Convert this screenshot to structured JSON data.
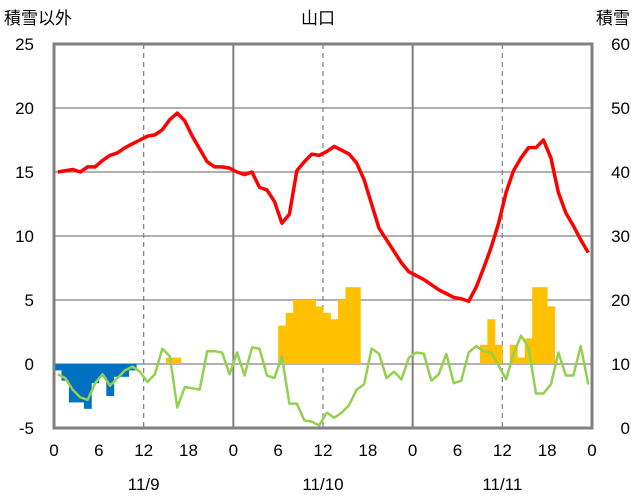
{
  "chart_data": {
    "type": "bar+line",
    "title": "山口",
    "left_axis_label": "積雪以外",
    "right_axis_label": "積雪",
    "left_ylim": [
      -5,
      25
    ],
    "left_ticks": [
      -5,
      0,
      5,
      10,
      15,
      20,
      25
    ],
    "right_ylim": [
      0,
      60
    ],
    "right_ticks": [
      0,
      10,
      20,
      30,
      40,
      50,
      60
    ],
    "x_range_hours": [
      0,
      72
    ],
    "x_tick_labels": [
      "0",
      "6",
      "12",
      "18",
      "0",
      "6",
      "12",
      "18",
      "0",
      "6",
      "12",
      "18",
      "0"
    ],
    "date_labels": [
      "11/9",
      "11/10",
      "11/11"
    ],
    "colors": {
      "temperature": "#ff0000",
      "green_line": "#92d050",
      "positive_bars": "#ffc000",
      "negative_bars": "#0070c0"
    },
    "series": [
      {
        "key": "temperature",
        "x": [
          0,
          1,
          2,
          3,
          4,
          5,
          6,
          7,
          8,
          9,
          10,
          11,
          12,
          13,
          14,
          15,
          16,
          17,
          18,
          19,
          20,
          21,
          22,
          23,
          24,
          25,
          26,
          27,
          28,
          29,
          30,
          31,
          32,
          33,
          34,
          35,
          36,
          37,
          38,
          39,
          40,
          41,
          42,
          43,
          44,
          45,
          46,
          47,
          48,
          49,
          50,
          51,
          52,
          53,
          54,
          55,
          56,
          57,
          58,
          59,
          60,
          61,
          62,
          63,
          64,
          65,
          66,
          67,
          68,
          69,
          70,
          71
        ],
        "values": [
          15.0,
          15.1,
          15.2,
          15.0,
          15.4,
          15.4,
          15.9,
          16.3,
          16.5,
          16.9,
          17.2,
          17.5,
          17.8,
          17.9,
          18.3,
          19.1,
          19.6,
          19.0,
          17.8,
          16.8,
          15.8,
          15.4,
          15.4,
          15.3,
          15.0,
          14.8,
          15.0,
          13.8,
          13.6,
          12.7,
          11.0,
          11.7,
          15.1,
          15.8,
          16.4,
          16.3,
          16.6,
          17.0,
          16.7,
          16.4,
          15.7,
          14.4,
          12.5,
          10.6,
          9.7,
          8.8,
          7.9,
          7.2,
          6.9,
          6.6,
          6.2,
          5.8,
          5.5,
          5.2,
          5.1,
          4.9,
          6.0,
          7.5,
          9.1,
          11.0,
          13.4,
          15.1,
          16.1,
          16.9,
          16.9,
          17.5,
          16.1,
          13.4,
          11.8,
          10.8,
          9.7,
          8.7
        ]
      },
      {
        "key": "green_line",
        "x": [
          0,
          1,
          2,
          3,
          4,
          5,
          6,
          7,
          8,
          9,
          10,
          11,
          12,
          13,
          14,
          15,
          16,
          17,
          18,
          19,
          20,
          21,
          22,
          23,
          24,
          25,
          26,
          27,
          28,
          29,
          30,
          31,
          32,
          33,
          34,
          35,
          36,
          37,
          38,
          39,
          40,
          41,
          42,
          43,
          44,
          45,
          46,
          47,
          48,
          49,
          50,
          51,
          52,
          53,
          54,
          55,
          56,
          57,
          58,
          59,
          60,
          61,
          62,
          63,
          64,
          65,
          66,
          67,
          68,
          69,
          70,
          71
        ],
        "values": [
          -0.8,
          -1.1,
          -2.0,
          -2.6,
          -2.8,
          -1.5,
          -0.8,
          -1.7,
          -1.1,
          -0.5,
          -0.2,
          -0.6,
          -1.4,
          -0.8,
          1.2,
          0.6,
          -3.4,
          -1.8,
          -1.9,
          -2.0,
          1.0,
          1.0,
          0.9,
          -0.8,
          0.9,
          -0.9,
          1.3,
          1.2,
          -0.9,
          -1.1,
          0.6,
          -3.1,
          -3.1,
          -4.4,
          -4.5,
          -4.8,
          -3.8,
          -4.2,
          -3.8,
          -3.2,
          -2.0,
          -1.6,
          1.2,
          0.8,
          -1.1,
          -0.6,
          -1.2,
          0.5,
          0.9,
          0.8,
          -1.3,
          -0.8,
          0.8,
          -1.5,
          -1.3,
          0.9,
          1.4,
          1.0,
          0.9,
          -0.1,
          -1.2,
          0.8,
          2.2,
          1.3,
          -2.3,
          -2.3,
          -1.6,
          0.9,
          -0.9,
          -0.9,
          1.4,
          -1.6
        ]
      },
      {
        "key": "snow_bars",
        "bar_values_right_axis": [
          [
            15,
            11
          ],
          [
            16,
            11
          ],
          [
            30,
            16
          ],
          [
            31,
            18
          ],
          [
            32,
            20
          ],
          [
            33,
            20
          ],
          [
            34,
            20
          ],
          [
            35,
            19
          ],
          [
            36,
            18
          ],
          [
            37,
            17
          ],
          [
            38,
            20
          ],
          [
            39,
            22
          ],
          [
            40,
            22
          ],
          [
            57,
            13
          ],
          [
            58,
            17
          ],
          [
            59,
            13
          ],
          [
            60,
            10
          ],
          [
            61,
            13
          ],
          [
            62,
            11
          ],
          [
            63,
            14
          ],
          [
            64,
            22
          ],
          [
            65,
            22
          ],
          [
            66,
            19
          ]
        ],
        "negative_bar_values_left_axis": [
          [
            0,
            -0.5
          ],
          [
            1,
            -1.3
          ],
          [
            2,
            -3.0
          ],
          [
            3,
            -3.0
          ],
          [
            4,
            -3.5
          ],
          [
            5,
            -1.5
          ],
          [
            6,
            -1.0
          ],
          [
            7,
            -2.5
          ],
          [
            8,
            -1.0
          ],
          [
            9,
            -1.0
          ],
          [
            10,
            -0.5
          ]
        ]
      }
    ],
    "grid": {
      "solid_vertical_hours": [
        24,
        48
      ],
      "dashed_vertical_hours": [
        12,
        36,
        60
      ],
      "horizontal_lines_left": [
        0,
        5,
        10,
        15,
        20
      ]
    }
  }
}
